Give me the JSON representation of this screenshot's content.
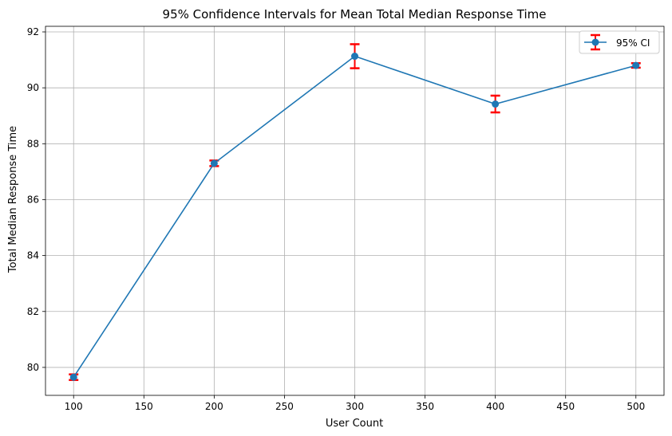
{
  "chart_data": {
    "type": "line",
    "title": "95% Confidence Intervals for Mean Total Median Response Time",
    "xlabel": "User Count",
    "ylabel": "Total Median Response Time",
    "xlim": [
      80,
      520
    ],
    "ylim": [
      79.0,
      92.2
    ],
    "x": [
      100,
      200,
      300,
      400,
      500
    ],
    "series": [
      {
        "name": "95% CI",
        "values": [
          79.65,
          87.3,
          91.13,
          89.42,
          90.8
        ],
        "ci_lower": [
          79.55,
          87.2,
          90.7,
          89.12,
          90.72
        ],
        "ci_upper": [
          79.75,
          87.4,
          91.56,
          89.72,
          90.88
        ]
      }
    ],
    "x_ticks": [
      100,
      150,
      200,
      250,
      300,
      350,
      400,
      450,
      500
    ],
    "y_ticks": [
      80,
      82,
      84,
      86,
      88,
      90,
      92
    ],
    "grid": true,
    "legend": "top-right",
    "colors": {
      "line": "#1f77b4",
      "errorbar": "#ff0000",
      "grid": "#b0b0b0"
    }
  }
}
